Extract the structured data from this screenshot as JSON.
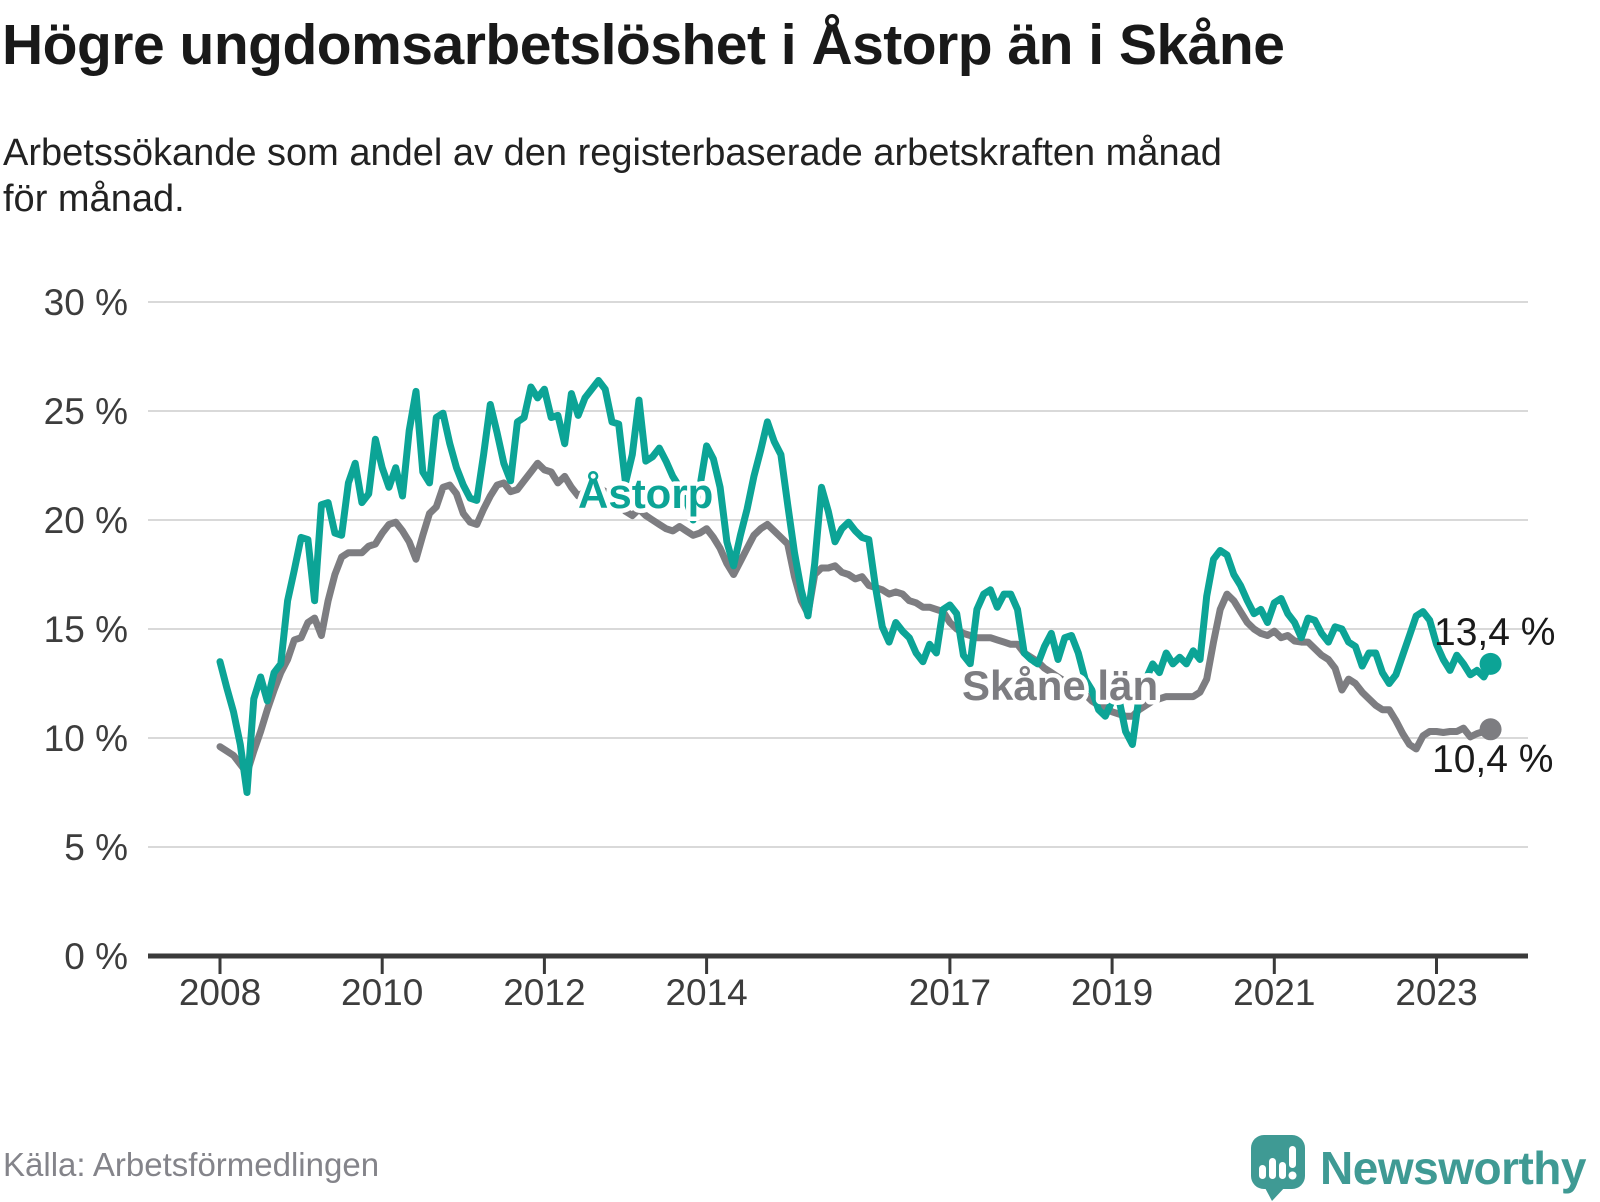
{
  "header": {
    "title": "Högre ungdomsarbetslöshet i Åstorp än i Skåne",
    "subtitle_line1": "Arbetssökande som andel av den registerbaserade arbetskraften månad",
    "subtitle_line2": "för månad."
  },
  "footer": {
    "source": "Källa: Arbetsförmedlingen",
    "logo_text": "Newsworthy"
  },
  "palette": {
    "astorp": "#0ca496",
    "skane": "#7d7d81",
    "grid": "#d9d9d9",
    "axis": "#3a3a3a",
    "tick_text": "#3d3d3d",
    "end_label_text": "#1a1a1a",
    "logo_teal": "#3f9a94"
  },
  "chart_data": {
    "type": "line",
    "title": "Högre ungdomsarbetslöshet i Åstorp än i Skåne",
    "subtitle": "Arbetssökande som andel av den registerbaserade arbetskraften månad för månad.",
    "x_start": "2008-01",
    "x_end": "2023-09",
    "frequency": "monthly",
    "ylim": [
      0,
      30
    ],
    "grid": "horizontal-only",
    "legend_position": "inline-labels",
    "y_ticks": [
      {
        "value": 0,
        "label": "0 %"
      },
      {
        "value": 5,
        "label": "5 %"
      },
      {
        "value": 10,
        "label": "10 %"
      },
      {
        "value": 15,
        "label": "15 %"
      },
      {
        "value": 20,
        "label": "20 %"
      },
      {
        "value": 25,
        "label": "25 %"
      },
      {
        "value": 30,
        "label": "30 %"
      }
    ],
    "x_ticks": [
      {
        "year": 2008,
        "label": "2008"
      },
      {
        "year": 2010,
        "label": "2010"
      },
      {
        "year": 2012,
        "label": "2012"
      },
      {
        "year": 2014,
        "label": "2014"
      },
      {
        "year": 2017,
        "label": "2017"
      },
      {
        "year": 2019,
        "label": "2019"
      },
      {
        "year": 2021,
        "label": "2021"
      },
      {
        "year": 2023,
        "label": "2023"
      }
    ],
    "series": [
      {
        "name": "Skåne län",
        "color": "#7d7d81",
        "end_label": "10,4 %",
        "end_value": 10.4,
        "values": [
          9.6,
          9.4,
          9.2,
          8.8,
          8.4,
          9.4,
          10.3,
          11.3,
          12.2,
          13.0,
          13.6,
          14.5,
          14.6,
          15.3,
          15.5,
          14.7,
          16.3,
          17.5,
          18.3,
          18.5,
          18.5,
          18.5,
          18.8,
          18.9,
          19.4,
          19.8,
          19.9,
          19.5,
          19.0,
          18.2,
          19.3,
          20.3,
          20.6,
          21.5,
          21.6,
          21.2,
          20.3,
          19.9,
          19.8,
          20.5,
          21.1,
          21.6,
          21.7,
          21.3,
          21.4,
          21.8,
          22.2,
          22.6,
          22.3,
          22.2,
          21.7,
          22.0,
          21.5,
          21.1,
          21.3,
          21.4,
          21.5,
          21.3,
          21.0,
          20.8,
          20.4,
          20.2,
          20.5,
          20.2,
          20.0,
          19.8,
          19.6,
          19.5,
          19.7,
          19.5,
          19.3,
          19.4,
          19.6,
          19.2,
          18.7,
          18.0,
          17.5,
          18.1,
          18.7,
          19.3,
          19.6,
          19.8,
          19.5,
          19.2,
          18.9,
          17.4,
          16.3,
          15.7,
          17.5,
          17.8,
          17.8,
          17.9,
          17.6,
          17.5,
          17.3,
          17.4,
          17.0,
          16.9,
          16.8,
          16.6,
          16.7,
          16.6,
          16.3,
          16.2,
          16.0,
          16.0,
          15.9,
          15.8,
          15.3,
          15.0,
          14.8,
          14.7,
          14.6,
          14.6,
          14.6,
          14.5,
          14.4,
          14.3,
          14.3,
          13.9,
          13.7,
          13.5,
          13.2,
          13.0,
          12.8,
          12.6,
          12.4,
          12.2,
          12.0,
          11.7,
          11.5,
          11.4,
          11.2,
          11.1,
          11.0,
          11.0,
          11.3,
          11.5,
          11.7,
          11.8,
          11.9,
          11.9,
          11.9,
          11.9,
          11.9,
          12.1,
          12.7,
          14.4,
          15.9,
          16.6,
          16.3,
          15.8,
          15.3,
          15.0,
          14.8,
          14.7,
          14.9,
          14.6,
          14.7,
          14.45,
          14.4,
          14.4,
          14.1,
          13.8,
          13.6,
          13.2,
          12.2,
          12.7,
          12.5,
          12.1,
          11.8,
          11.5,
          11.3,
          11.3,
          10.8,
          10.2,
          9.7,
          9.5,
          10.1,
          10.3,
          10.3,
          10.25,
          10.3,
          10.3,
          10.45,
          10.05,
          10.2,
          10.3,
          10.4
        ]
      },
      {
        "name": "Åstorp",
        "color": "#0ca496",
        "end_label": "13,4 %",
        "end_value": 13.4,
        "values": [
          13.5,
          12.3,
          11.2,
          9.7,
          7.5,
          11.8,
          12.8,
          11.7,
          13.0,
          13.4,
          16.3,
          17.7,
          19.2,
          19.1,
          16.3,
          20.7,
          20.8,
          19.4,
          19.3,
          21.7,
          22.6,
          20.8,
          21.2,
          23.7,
          22.4,
          21.5,
          22.4,
          21.1,
          24.1,
          25.9,
          22.2,
          21.7,
          24.7,
          24.9,
          23.5,
          22.4,
          21.6,
          21.0,
          20.9,
          23.0,
          25.3,
          24.0,
          22.6,
          21.8,
          24.5,
          24.7,
          26.1,
          25.6,
          26.0,
          24.7,
          24.8,
          23.5,
          25.8,
          24.8,
          25.6,
          26.0,
          26.4,
          26.0,
          24.5,
          24.4,
          21.7,
          23.0,
          25.5,
          22.7,
          22.9,
          23.3,
          22.7,
          22.0,
          21.5,
          20.9,
          20.0,
          21.5,
          23.4,
          22.8,
          21.5,
          19.0,
          17.9,
          19.3,
          20.5,
          22.0,
          23.2,
          24.5,
          23.6,
          23.0,
          20.7,
          18.5,
          16.8,
          15.6,
          18.0,
          21.5,
          20.4,
          19.0,
          19.6,
          19.9,
          19.5,
          19.2,
          19.1,
          16.9,
          15.1,
          14.4,
          15.3,
          14.9,
          14.6,
          13.9,
          13.5,
          14.3,
          13.9,
          15.9,
          16.1,
          15.7,
          13.8,
          13.4,
          15.9,
          16.6,
          16.8,
          16.0,
          16.6,
          16.6,
          15.9,
          13.9,
          13.6,
          13.4,
          14.2,
          14.8,
          13.6,
          14.6,
          14.7,
          13.9,
          12.7,
          12.2,
          11.3,
          11.0,
          11.7,
          11.8,
          10.3,
          9.7,
          11.9,
          12.7,
          13.4,
          13.0,
          13.9,
          13.4,
          13.7,
          13.4,
          14.0,
          13.6,
          16.5,
          18.2,
          18.6,
          18.4,
          17.5,
          17.0,
          16.3,
          15.7,
          15.9,
          15.3,
          16.2,
          16.4,
          15.7,
          15.3,
          14.6,
          15.5,
          15.4,
          14.8,
          14.4,
          15.1,
          15.0,
          14.4,
          14.2,
          13.3,
          13.9,
          13.9,
          13.0,
          12.5,
          12.9,
          13.8,
          14.7,
          15.6,
          15.8,
          15.4,
          14.3,
          13.6,
          13.1,
          13.8,
          13.4,
          12.9,
          13.1,
          12.8,
          13.4
        ]
      }
    ]
  }
}
